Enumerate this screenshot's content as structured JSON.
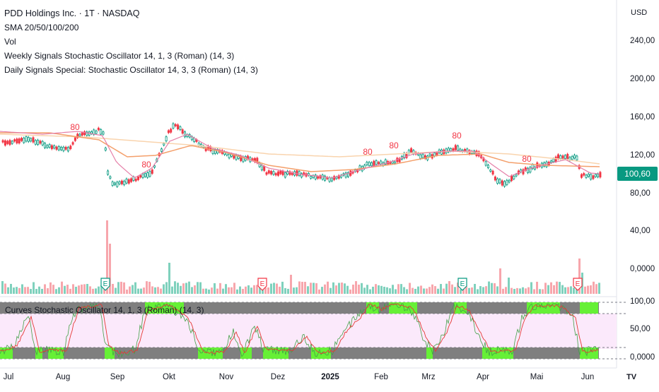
{
  "legend": {
    "title": "PDD Holdings Inc. · 1T · NASDAQ",
    "indicators": [
      "SMA 20/50/100/200",
      "Vol",
      "Weekly Signals Stochastic Oscillator 14, 1, 3 (Roman) (14, 3)",
      "Daily Signals Special: Stochastic Oscillator 14, 3, 3 (Roman) (14, 3)"
    ]
  },
  "oscillator_legend": "Curves Stochastic Oscillator 14, 1, 3 (Roman) (14, 3)",
  "currency": "USD",
  "price_axis": [
    "240,00",
    "200,00",
    "160,00",
    "120,00",
    "80,00",
    "40,00",
    "0,0000"
  ],
  "oscillator_axis": [
    "100,00",
    "50,00",
    "0,0000"
  ],
  "last_price": "100,60",
  "x_axis": [
    "Jul",
    "Aug",
    "Sep",
    "Okt",
    "Nov",
    "Dez",
    "2025",
    "Feb",
    "Mrz",
    "Apr",
    "Mai",
    "Jun"
  ],
  "signal_labels": {
    "overbought": "80",
    "volume_signal": "E"
  },
  "colors": {
    "up": "#089981",
    "down": "#f23645",
    "sma_fast": "#e57fa8",
    "sma_mid": "#f4a06c",
    "sma_slow": "#f9d4ae",
    "osc_zone": "#fbe9fb",
    "osc_gray": "#7f7f7f",
    "osc_green": "#66f036"
  },
  "logo": "TV"
}
